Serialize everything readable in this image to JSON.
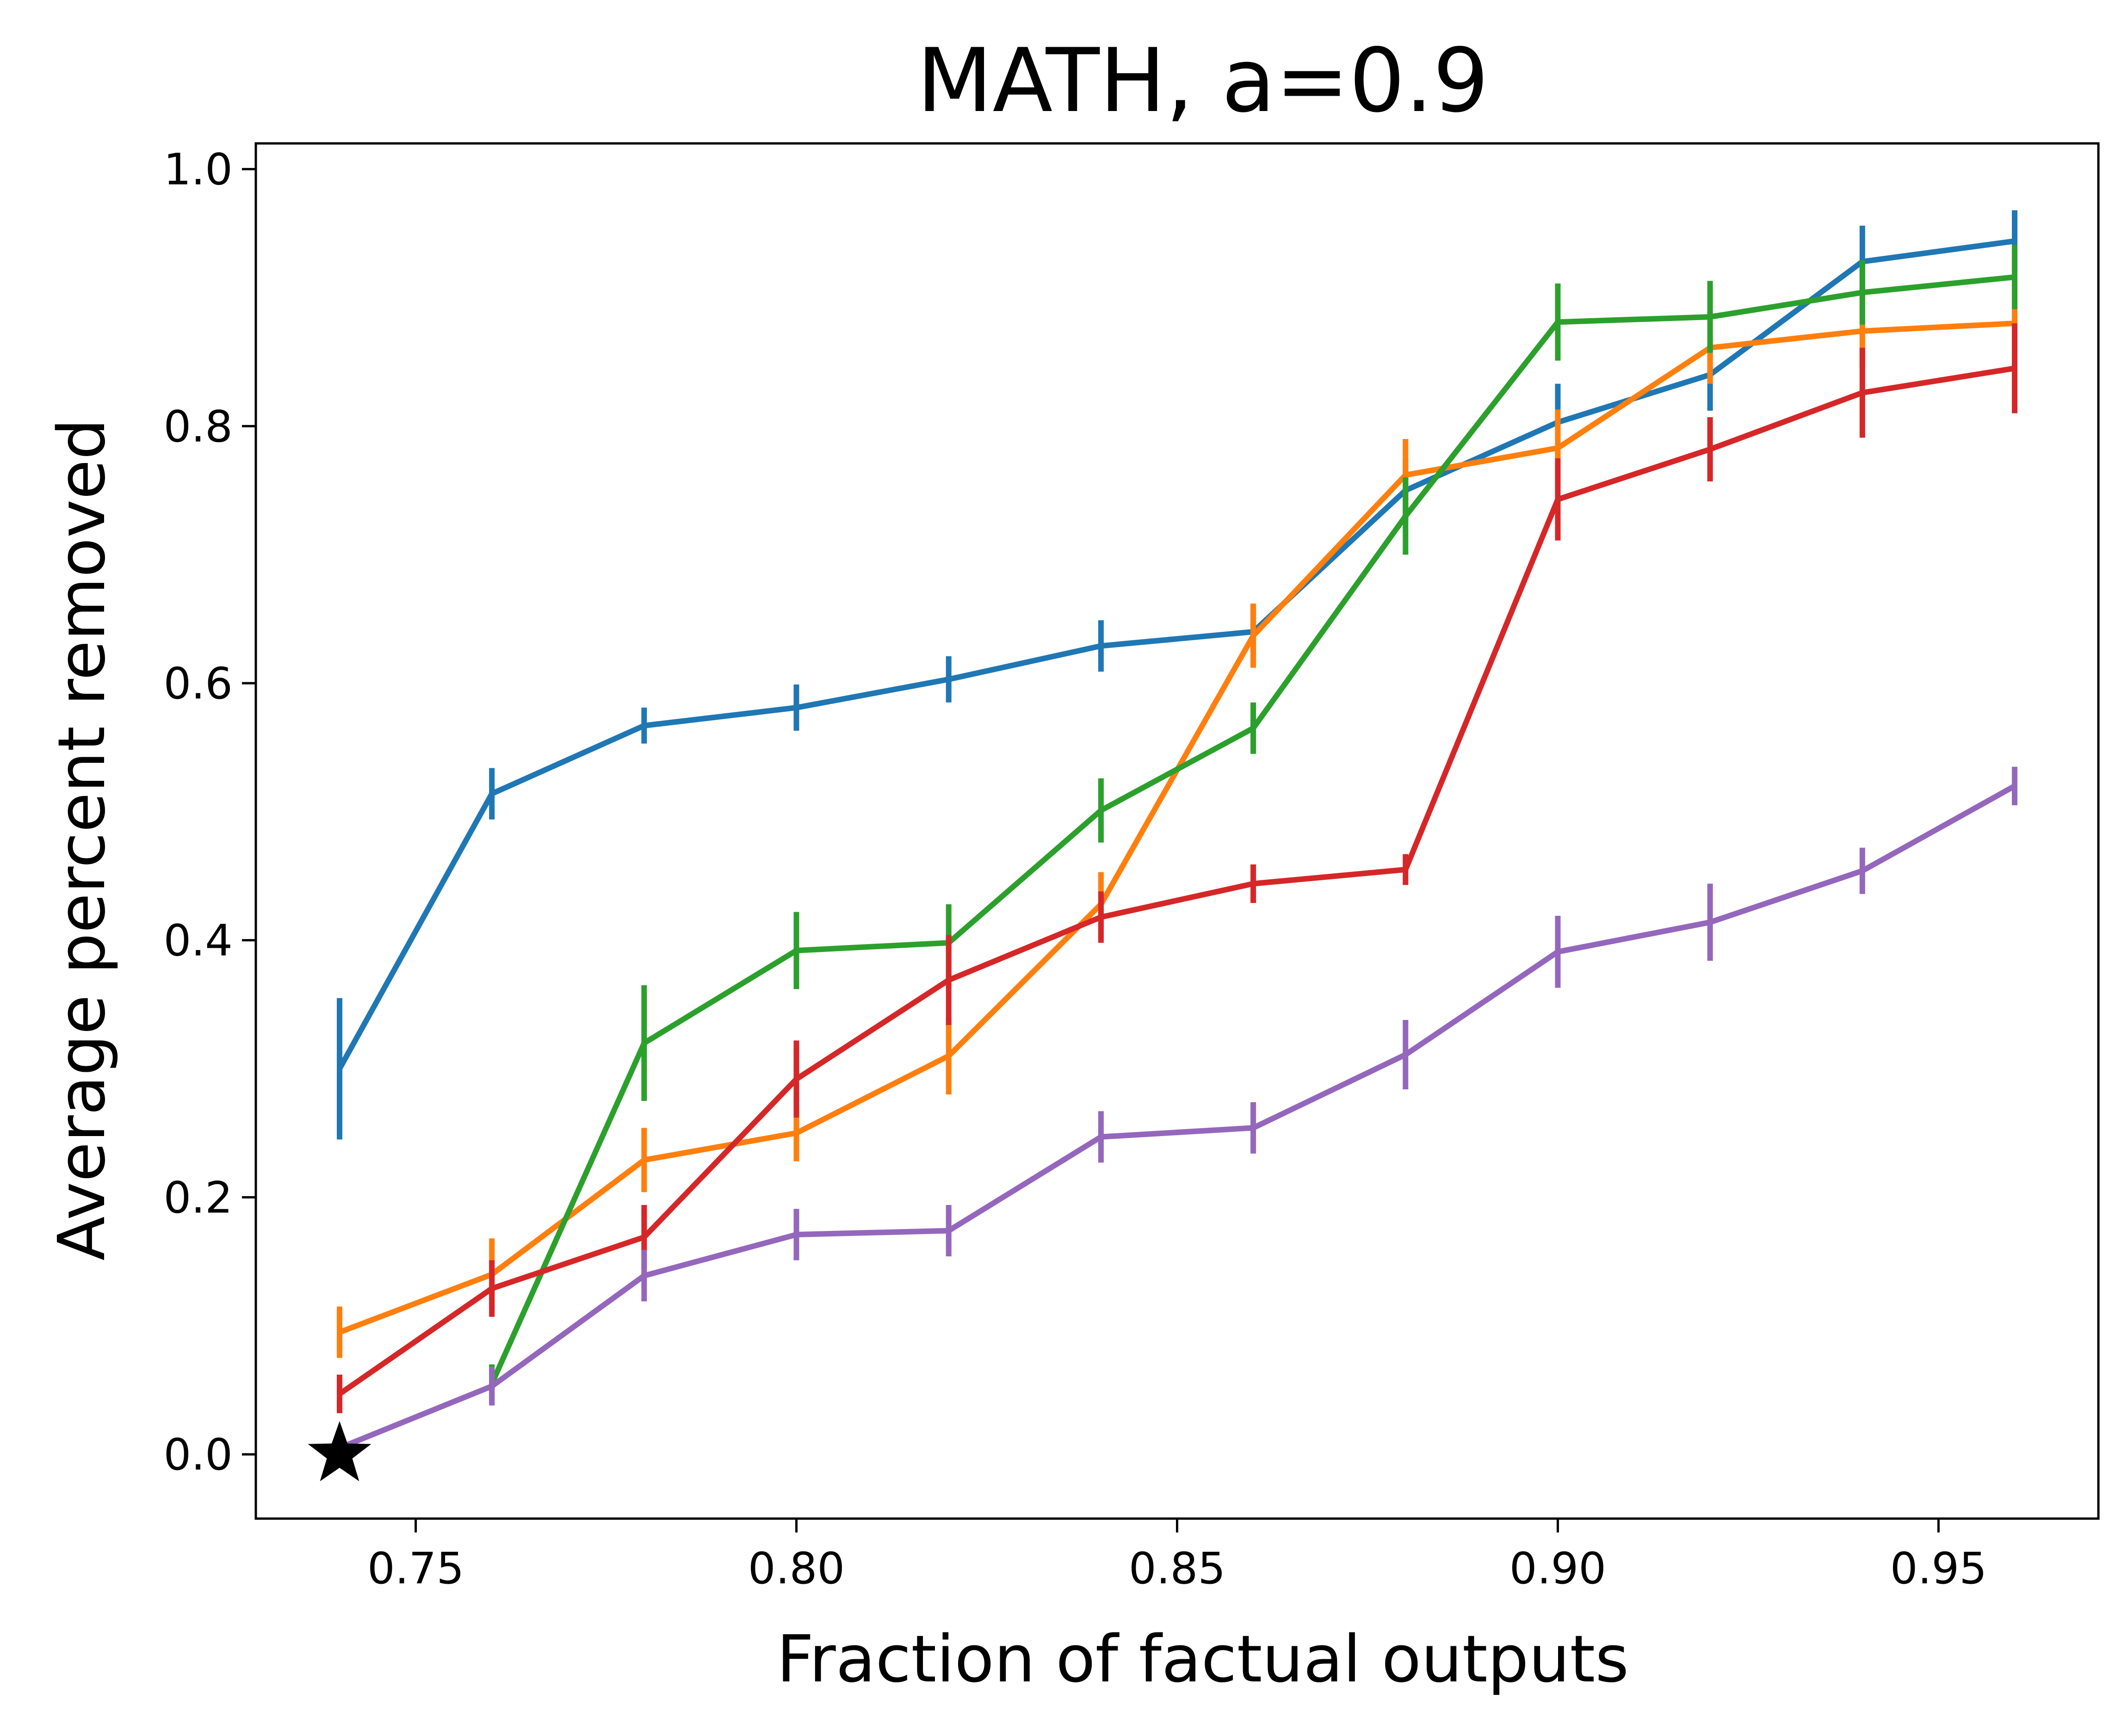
{
  "chart_data": {
    "type": "line",
    "title": "MATH, a=0.9",
    "xlabel": "Fraction of factual outputs",
    "ylabel": "Average percent removed",
    "xlim": [
      0.729,
      0.971
    ],
    "ylim": [
      -0.05,
      1.02
    ],
    "xticks": [
      0.75,
      0.8,
      0.85,
      0.9,
      0.95
    ],
    "xtick_labels": [
      "0.75",
      "0.80",
      "0.85",
      "0.90",
      "0.95"
    ],
    "yticks": [
      0.0,
      0.2,
      0.4,
      0.6,
      0.8,
      1.0
    ],
    "ytick_labels": [
      "0.0",
      "0.2",
      "0.4",
      "0.6",
      "0.8",
      "1.0"
    ],
    "grid": false,
    "legend": "none",
    "marker": {
      "x": 0.74,
      "y": 0.0,
      "shape": "star",
      "color": "#000000"
    },
    "series": [
      {
        "color": "#1f77b4",
        "x": [
          0.74,
          0.76,
          0.78,
          0.8,
          0.82,
          0.84,
          0.86,
          0.88,
          0.9,
          0.92,
          0.94,
          0.96
        ],
        "y": [
          0.3,
          0.514,
          0.567,
          0.581,
          0.603,
          0.629,
          0.64,
          0.75,
          0.803,
          0.84,
          0.928,
          0.944
        ],
        "err": [
          0.055,
          0.02,
          0.014,
          0.018,
          0.018,
          0.02,
          0.02,
          0.025,
          0.03,
          0.028,
          0.028,
          0.024
        ]
      },
      {
        "color": "#ff7f0e",
        "x": [
          0.74,
          0.76,
          0.78,
          0.8,
          0.82,
          0.84,
          0.86,
          0.88,
          0.9,
          0.92,
          0.94,
          0.96
        ],
        "y": [
          0.095,
          0.14,
          0.229,
          0.25,
          0.31,
          0.428,
          0.637,
          0.762,
          0.783,
          0.861,
          0.874,
          0.88
        ],
        "err": [
          0.02,
          0.028,
          0.025,
          0.022,
          0.03,
          0.025,
          0.025,
          0.028,
          0.03,
          0.028,
          0.028,
          0.024
        ]
      },
      {
        "color": "#2ca02c",
        "x": [
          0.76,
          0.78,
          0.8,
          0.82,
          0.84,
          0.86,
          0.88,
          0.9,
          0.92,
          0.94,
          0.96
        ],
        "y": [
          0.055,
          0.32,
          0.392,
          0.398,
          0.501,
          0.565,
          0.73,
          0.881,
          0.885,
          0.904,
          0.916
        ],
        "err": [
          0.015,
          0.045,
          0.03,
          0.03,
          0.025,
          0.02,
          0.03,
          0.03,
          0.028,
          0.025,
          0.025
        ]
      },
      {
        "color": "#d62728",
        "x": [
          0.74,
          0.76,
          0.78,
          0.8,
          0.82,
          0.84,
          0.86,
          0.88,
          0.9,
          0.92,
          0.94,
          0.96
        ],
        "y": [
          0.047,
          0.129,
          0.169,
          0.292,
          0.369,
          0.418,
          0.444,
          0.455,
          0.743,
          0.782,
          0.826,
          0.845
        ],
        "err": [
          0.015,
          0.022,
          0.025,
          0.03,
          0.035,
          0.02,
          0.015,
          0.012,
          0.032,
          0.025,
          0.035,
          0.035
        ]
      },
      {
        "color": "#9467bd",
        "x": [
          0.74,
          0.76,
          0.78,
          0.8,
          0.82,
          0.84,
          0.86,
          0.88,
          0.9,
          0.92,
          0.94,
          0.96
        ],
        "y": [
          0.005,
          0.053,
          0.139,
          0.171,
          0.174,
          0.247,
          0.254,
          0.311,
          0.391,
          0.414,
          0.454,
          0.52
        ],
        "err": [
          0.008,
          0.015,
          0.02,
          0.02,
          0.02,
          0.02,
          0.02,
          0.027,
          0.028,
          0.03,
          0.018,
          0.015
        ]
      }
    ]
  }
}
